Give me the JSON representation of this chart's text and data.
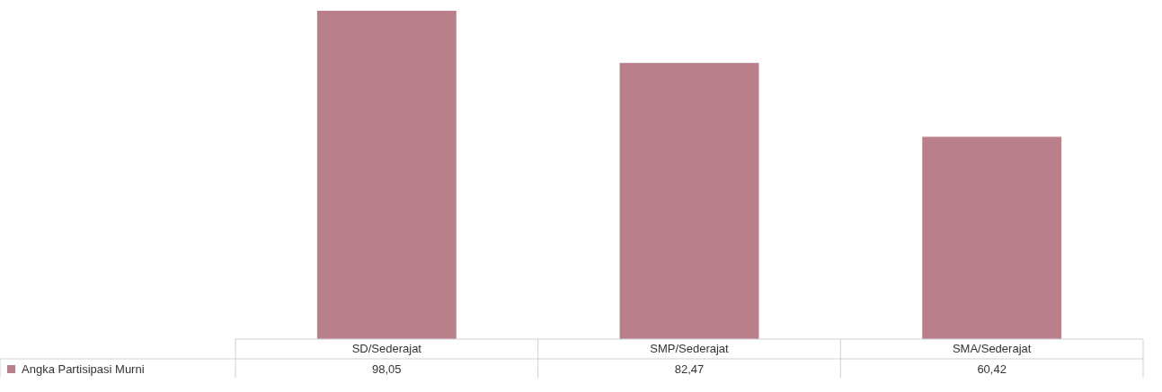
{
  "chart_data": {
    "type": "bar",
    "categories": [
      "SD/Sederajat",
      "SMP/Sederajat",
      "SMA/Sederajat"
    ],
    "series": [
      {
        "name": "Angka Partisipasi Murni",
        "color": "#b9808c",
        "values": [
          98.05,
          82.47,
          60.42
        ],
        "value_labels": [
          "98,05",
          "82,47",
          "60,42"
        ]
      }
    ],
    "data_labels": true
  }
}
